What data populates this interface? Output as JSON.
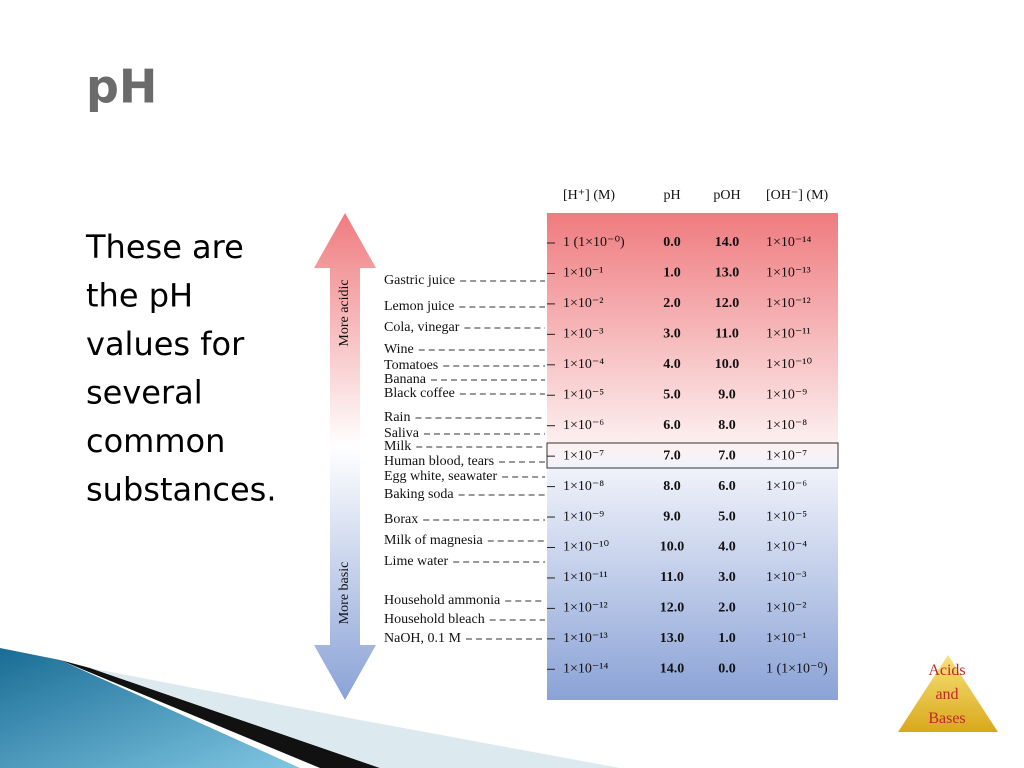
{
  "title": "pH",
  "body": [
    "These are",
    "the pH",
    "values for",
    "several",
    "common",
    "substances."
  ],
  "figure": {
    "headers": [
      "[H⁺] (M)",
      "pH",
      "pOH",
      "[OH⁻] (M)"
    ],
    "rows": [
      [
        "1 (1×10⁻⁰)",
        "0.0",
        "14.0",
        "1×10⁻¹⁴"
      ],
      [
        "1×10⁻¹",
        "1.0",
        "13.0",
        "1×10⁻¹³"
      ],
      [
        "1×10⁻²",
        "2.0",
        "12.0",
        "1×10⁻¹²"
      ],
      [
        "1×10⁻³",
        "3.0",
        "11.0",
        "1×10⁻¹¹"
      ],
      [
        "1×10⁻⁴",
        "4.0",
        "10.0",
        "1×10⁻¹⁰"
      ],
      [
        "1×10⁻⁵",
        "5.0",
        "9.0",
        "1×10⁻⁹"
      ],
      [
        "1×10⁻⁶",
        "6.0",
        "8.0",
        "1×10⁻⁸"
      ],
      [
        "1×10⁻⁷",
        "7.0",
        "7.0",
        "1×10⁻⁷"
      ],
      [
        "1×10⁻⁸",
        "8.0",
        "6.0",
        "1×10⁻⁶"
      ],
      [
        "1×10⁻⁹",
        "9.0",
        "5.0",
        "1×10⁻⁵"
      ],
      [
        "1×10⁻¹⁰",
        "10.0",
        "4.0",
        "1×10⁻⁴"
      ],
      [
        "1×10⁻¹¹",
        "11.0",
        "3.0",
        "1×10⁻³"
      ],
      [
        "1×10⁻¹²",
        "12.0",
        "2.0",
        "1×10⁻²"
      ],
      [
        "1×10⁻¹³",
        "13.0",
        "1.0",
        "1×10⁻¹"
      ],
      [
        "1×10⁻¹⁴",
        "14.0",
        "0.0",
        "1 (1×10⁻⁰)"
      ]
    ],
    "substances": [
      "Gastric juice",
      "Lemon juice",
      "Cola, vinegar",
      "Wine",
      "Tomatoes",
      "Banana",
      "Black coffee",
      "Rain",
      "Saliva",
      "Milk",
      "Human blood, tears",
      "Egg white, seawater",
      "Baking soda",
      "Borax",
      "Milk of magnesia",
      "Lime water",
      "Household ammonia",
      "Household bleach",
      "NaOH, 0.1 M"
    ],
    "arrow": {
      "top": "More acidic",
      "bottom": "More basic"
    }
  },
  "logo": [
    "Acids",
    "and",
    "Bases"
  ]
}
